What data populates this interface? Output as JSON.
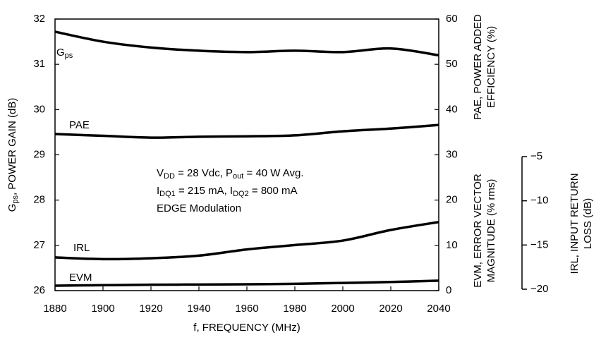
{
  "chart_data": {
    "type": "line",
    "x_label": "f, FREQUENCY (MHz)",
    "y_label": [
      "G",
      "ps",
      ", POWER GAIN (dB)"
    ],
    "y2_label": [
      "PAE, POWER ADDED",
      "EFFICIENCY (%)",
      "EVM, ERROR VECTOR",
      "MAGNITUDE (% rms)"
    ],
    "y3_label": [
      "IRL, INPUT RETURN",
      "LOSS (dB)"
    ],
    "annotation": [
      [
        "V",
        "DD",
        " = 28 Vdc, P",
        "out",
        " = 40 W Avg."
      ],
      [
        "I",
        "DQ1",
        " = 215 mA, I",
        "DQ2",
        " = 800 mA"
      ],
      [
        "EDGE Modulation"
      ]
    ],
    "x": [
      1880,
      1900,
      1920,
      1940,
      1960,
      1980,
      2000,
      2020,
      2040
    ],
    "xlim": [
      1880,
      2040
    ],
    "xticks": [
      1880,
      1900,
      1920,
      1940,
      1960,
      1980,
      2000,
      2020,
      2040
    ],
    "ylim": [
      26,
      32
    ],
    "yticks": [
      26,
      27,
      28,
      29,
      30,
      31,
      32
    ],
    "y2lim": [
      0,
      60
    ],
    "y2ticks": [
      0,
      10,
      20,
      30,
      40,
      50,
      60
    ],
    "y3lim": [
      -20,
      -5
    ],
    "y3ticks": [
      {
        "value": -5,
        "label": "−5"
      },
      {
        "value": -10,
        "label": "−10"
      },
      {
        "value": -15,
        "label": "−15"
      },
      {
        "value": -20,
        "label": "−20"
      }
    ],
    "series": [
      {
        "name": [
          "G",
          "ps"
        ],
        "color": "#000000",
        "axis": "y",
        "values": [
          31.72,
          31.5,
          31.37,
          31.3,
          31.27,
          31.3,
          31.27,
          31.35,
          31.2
        ]
      },
      {
        "name": [
          "PAE"
        ],
        "color": "#000000",
        "axis": "y2",
        "values": [
          34.6,
          34.2,
          33.8,
          34.0,
          34.1,
          34.3,
          35.2,
          35.8,
          36.6
        ]
      },
      {
        "name": [
          "IRL"
        ],
        "color": "#000000",
        "axis": "y3",
        "values": [
          -16.4,
          -16.6,
          -16.5,
          -16.2,
          -15.5,
          -15.0,
          -14.5,
          -13.3,
          -12.4
        ]
      },
      {
        "name": [
          "EVM"
        ],
        "color": "#000000",
        "axis": "y2",
        "values": [
          1.1,
          1.2,
          1.3,
          1.35,
          1.4,
          1.5,
          1.7,
          1.9,
          2.2
        ]
      }
    ]
  }
}
